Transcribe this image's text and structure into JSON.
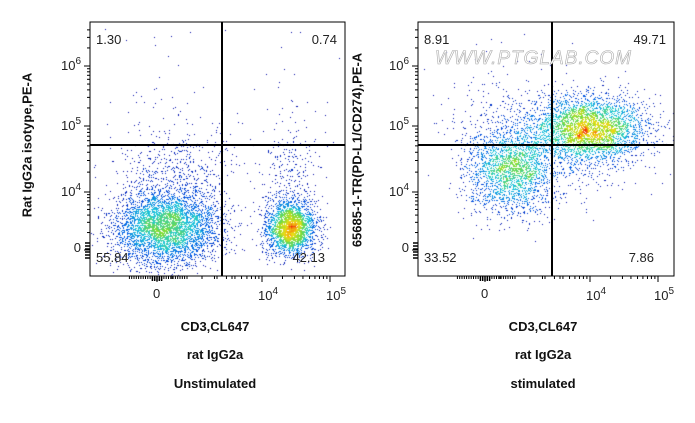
{
  "chart_data": [
    {
      "type": "scatter",
      "subtype": "flow-cytometry pseudocolor density plot with quadrant gates",
      "xlabel": "CD3,CL647",
      "ylabel": "Rat IgG2a isotype,PE-A",
      "caption_lines": [
        "rat IgG2a",
        "Unstimulated"
      ],
      "x_ticks": [
        {
          "label": "0"
        },
        {
          "label": "10",
          "exp": "4"
        },
        {
          "label": "10",
          "exp": "5"
        }
      ],
      "y_ticks": [
        {
          "label": "0"
        },
        {
          "label": "10",
          "exp": "4"
        },
        {
          "label": "10",
          "exp": "5"
        },
        {
          "label": "10",
          "exp": "6"
        }
      ],
      "x_scale": "biexponential",
      "y_scale": "biexponential",
      "quadrants": {
        "upper_left": "1.30",
        "upper_right": "0.74",
        "lower_left": "55.84",
        "lower_right": "42.13"
      }
    },
    {
      "type": "scatter",
      "subtype": "flow-cytometry pseudocolor density plot with quadrant gates",
      "xlabel": "CD3,CL647",
      "ylabel": "65685-1-TR(PD-L1/CD274),PE-A",
      "caption_lines": [
        "rat IgG2a",
        "stimulated"
      ],
      "x_ticks": [
        {
          "label": "0"
        },
        {
          "label": "10",
          "exp": "4"
        },
        {
          "label": "10",
          "exp": "5"
        }
      ],
      "y_ticks": [
        {
          "label": "0"
        },
        {
          "label": "10",
          "exp": "4"
        },
        {
          "label": "10",
          "exp": "5"
        },
        {
          "label": "10",
          "exp": "6"
        }
      ],
      "x_scale": "biexponential",
      "y_scale": "biexponential",
      "quadrants": {
        "upper_left": "8.91",
        "upper_right": "49.71",
        "lower_left": "33.52",
        "lower_right": "7.86"
      },
      "watermark": "WWW.PTGLAB.COM"
    }
  ],
  "colors": {
    "low": "#0000a0",
    "mid": "#20c0e0",
    "high": "#f01010",
    "gate": "#000000"
  }
}
